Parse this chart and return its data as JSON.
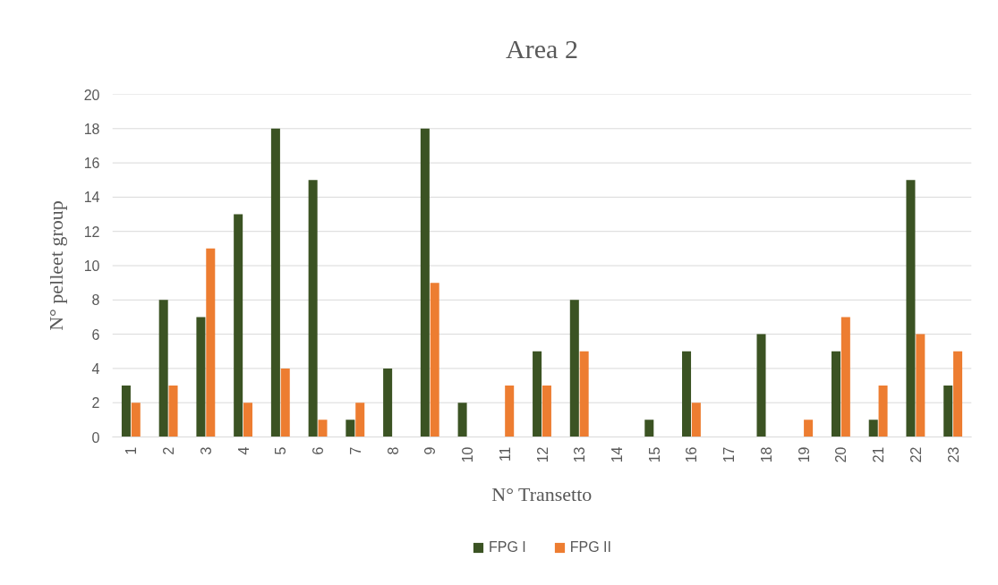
{
  "chart_data": {
    "type": "bar",
    "title": "Area 2",
    "xlabel": "N° Transetto",
    "ylabel": "N° pelleet group",
    "categories": [
      "1",
      "2",
      "3",
      "4",
      "5",
      "6",
      "7",
      "8",
      "9",
      "10",
      "11",
      "12",
      "13",
      "14",
      "15",
      "16",
      "17",
      "18",
      "19",
      "20",
      "21",
      "22",
      "23"
    ],
    "series": [
      {
        "name": "FPG I",
        "color": "#3b5323",
        "values": [
          3,
          8,
          7,
          13,
          18,
          15,
          1,
          4,
          18,
          2,
          0,
          5,
          8,
          0,
          1,
          5,
          0,
          6,
          0,
          5,
          1,
          15,
          3
        ]
      },
      {
        "name": "FPG II",
        "color": "#ed7d31",
        "values": [
          2,
          3,
          11,
          2,
          4,
          1,
          2,
          0,
          9,
          0,
          3,
          3,
          5,
          0,
          0,
          2,
          0,
          0,
          1,
          7,
          3,
          6,
          5
        ]
      }
    ],
    "ylim": [
      0,
      20
    ],
    "yticks": [
      0,
      2,
      4,
      6,
      8,
      10,
      12,
      14,
      16,
      18,
      20
    ],
    "grid": "y",
    "legend": "bottom"
  }
}
